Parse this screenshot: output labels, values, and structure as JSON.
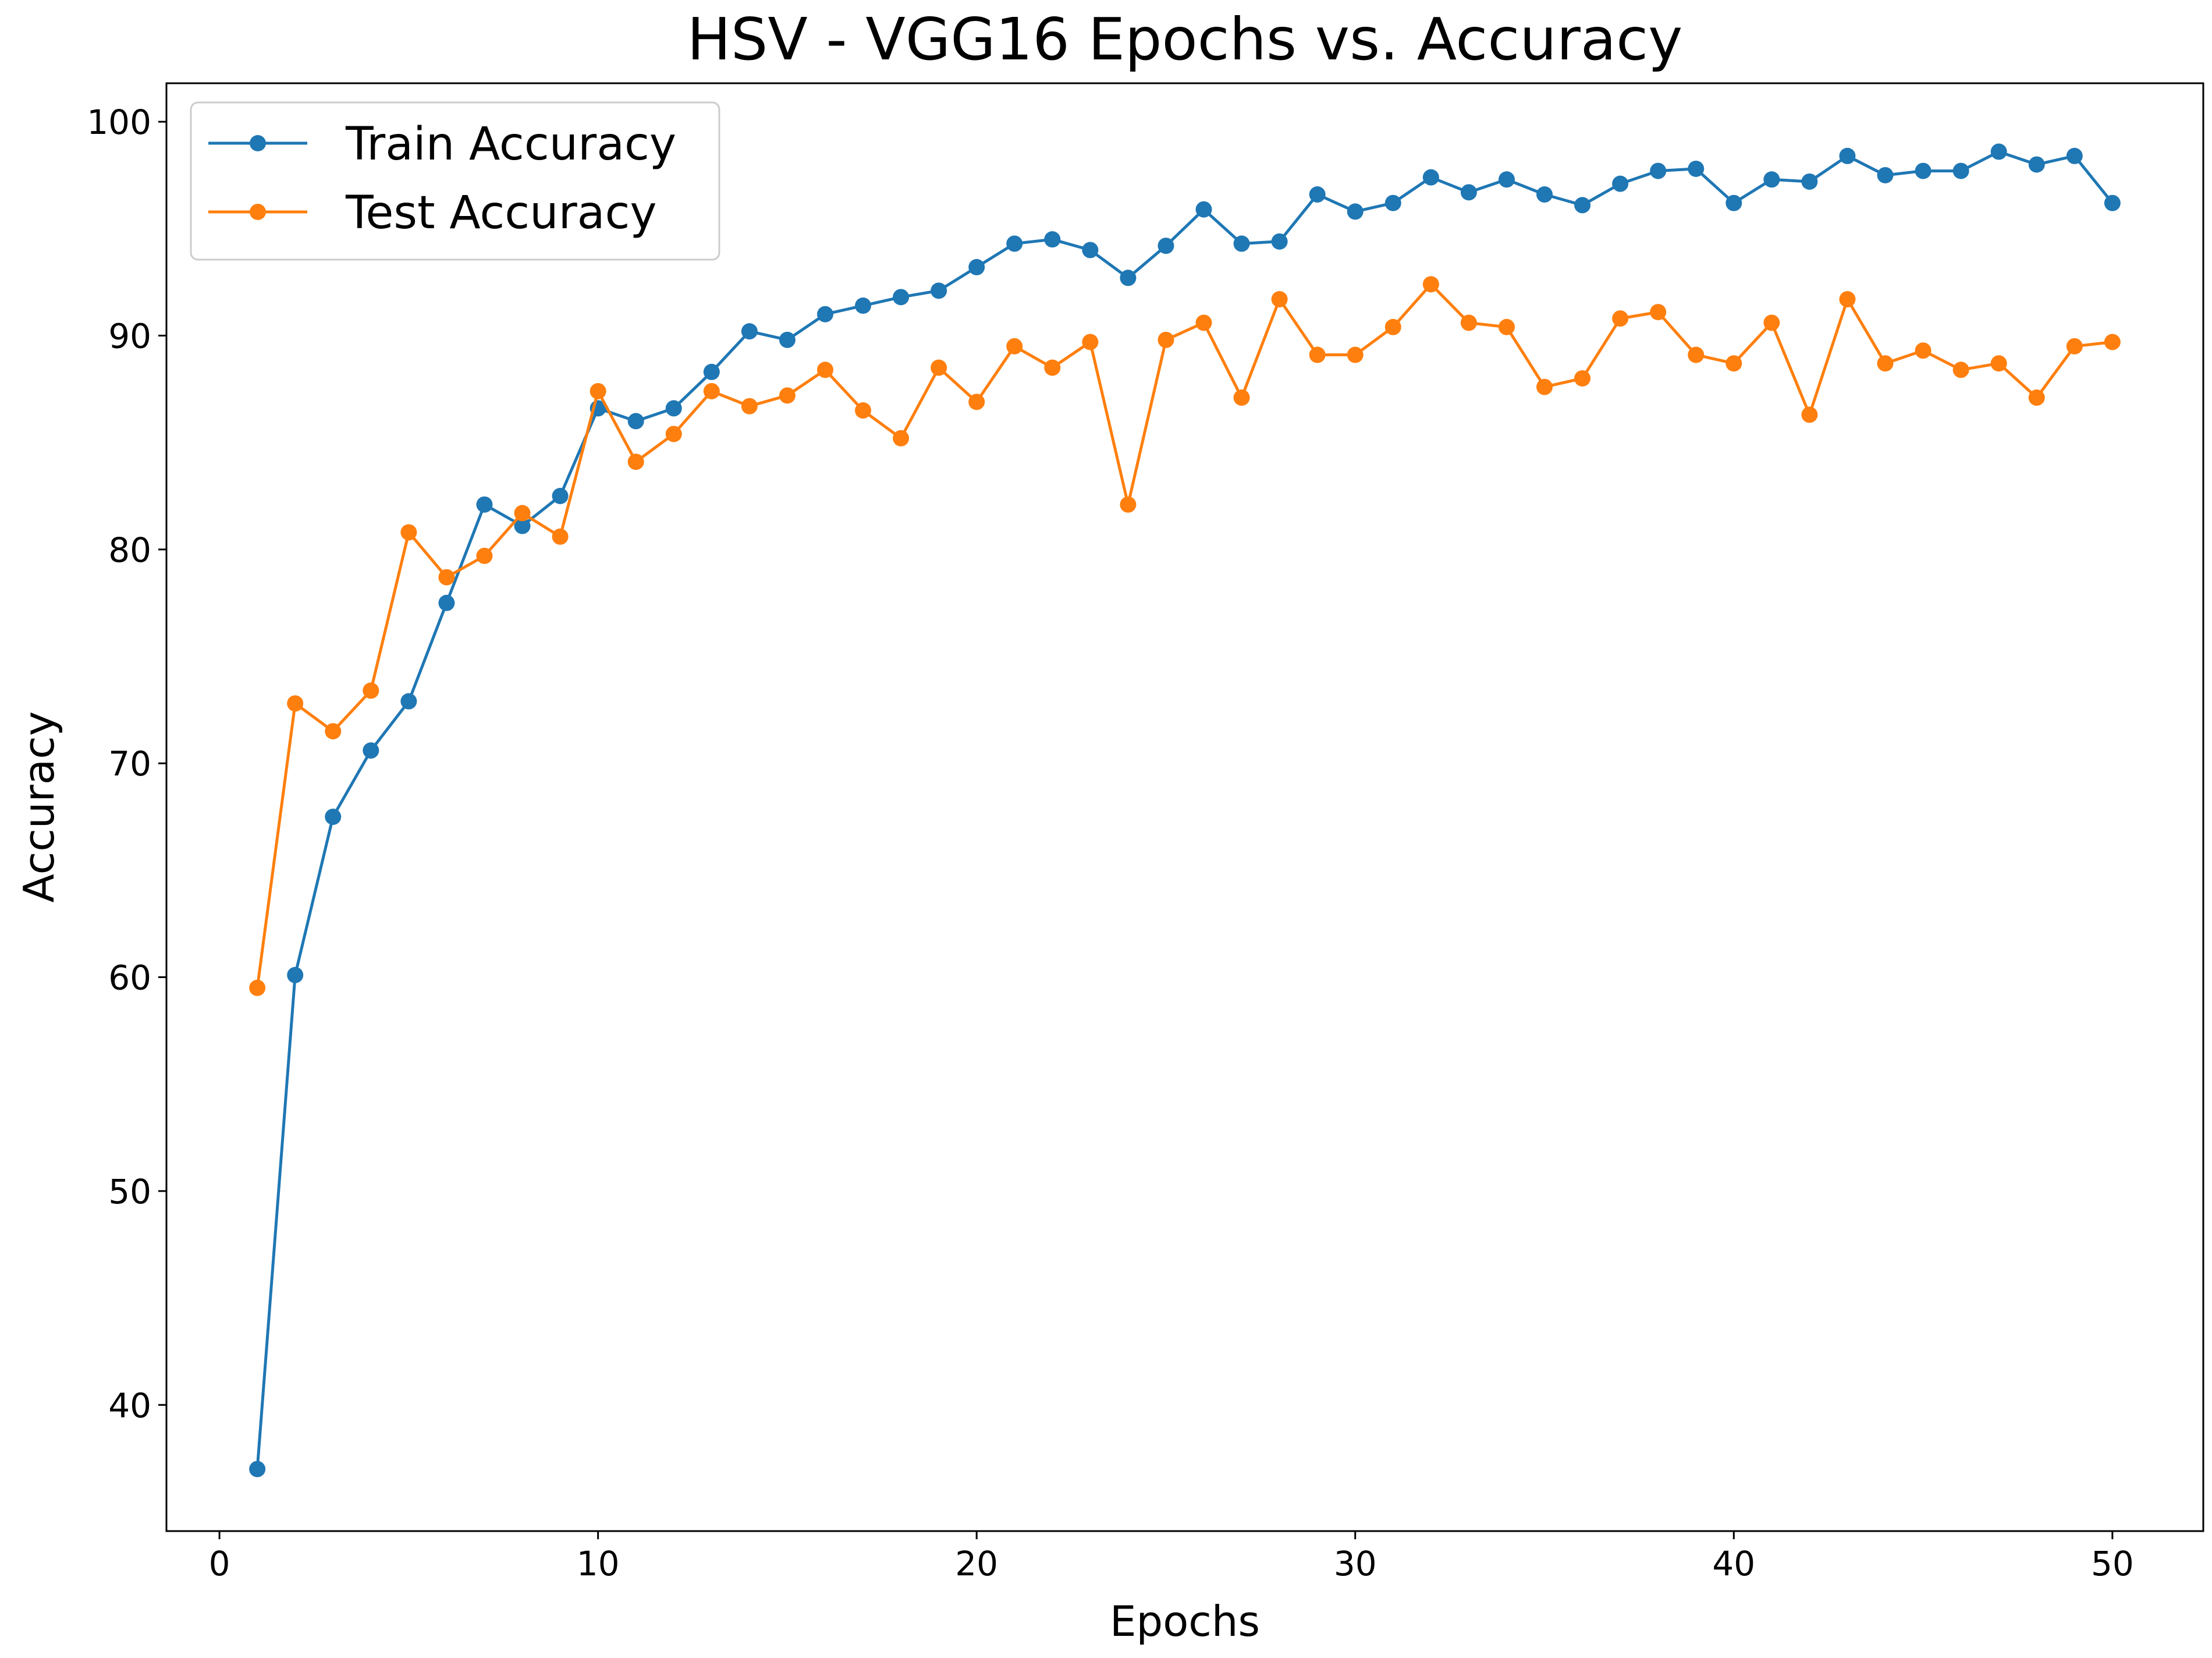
{
  "chart_data": {
    "type": "line",
    "title": "HSV - VGG16 Epochs vs. Accuracy",
    "xlabel": "Epochs",
    "ylabel": "Accuracy",
    "xlim": [
      -1.4,
      52.4
    ],
    "ylim": [
      34.1,
      101.8
    ],
    "xticks": [
      0,
      10,
      20,
      30,
      40,
      50
    ],
    "yticks": [
      40,
      50,
      60,
      70,
      80,
      90,
      100
    ],
    "grid": false,
    "legend_position": "top-left",
    "x": [
      1,
      2,
      3,
      4,
      5,
      6,
      7,
      8,
      9,
      10,
      11,
      12,
      13,
      14,
      15,
      16,
      17,
      18,
      19,
      20,
      21,
      22,
      23,
      24,
      25,
      26,
      27,
      28,
      29,
      30,
      31,
      32,
      33,
      34,
      35,
      36,
      37,
      38,
      39,
      40,
      41,
      42,
      43,
      44,
      45,
      46,
      47,
      48,
      49,
      50
    ],
    "series": [
      {
        "name": "Train Accuracy",
        "color": "#1f77b4",
        "values": [
          37.0,
          60.1,
          67.5,
          70.6,
          72.9,
          77.5,
          82.1,
          81.1,
          82.5,
          86.6,
          86.0,
          86.6,
          88.3,
          90.2,
          89.8,
          91.0,
          91.4,
          91.8,
          92.1,
          93.2,
          94.3,
          94.5,
          94.0,
          92.7,
          94.2,
          95.9,
          94.3,
          94.4,
          96.6,
          95.8,
          96.2,
          97.4,
          96.7,
          97.3,
          96.6,
          96.1,
          97.1,
          97.7,
          97.8,
          96.2,
          97.3,
          97.2,
          98.4,
          97.5,
          97.7,
          97.7,
          98.6,
          98.0,
          98.4,
          96.2
        ]
      },
      {
        "name": "Test Accuracy",
        "color": "#ff7f0e",
        "values": [
          59.5,
          72.8,
          71.5,
          73.4,
          80.8,
          78.7,
          79.7,
          81.7,
          80.6,
          87.4,
          84.1,
          85.4,
          87.4,
          86.7,
          87.2,
          88.4,
          86.5,
          85.2,
          88.5,
          86.9,
          89.5,
          88.5,
          89.7,
          82.1,
          89.8,
          90.6,
          87.1,
          91.7,
          89.1,
          89.1,
          90.4,
          92.4,
          90.6,
          90.4,
          87.6,
          88.0,
          90.8,
          91.1,
          89.1,
          88.7,
          90.6,
          86.3,
          91.7,
          88.7,
          89.3,
          88.4,
          88.7,
          87.1,
          89.5,
          89.7
        ]
      }
    ]
  }
}
